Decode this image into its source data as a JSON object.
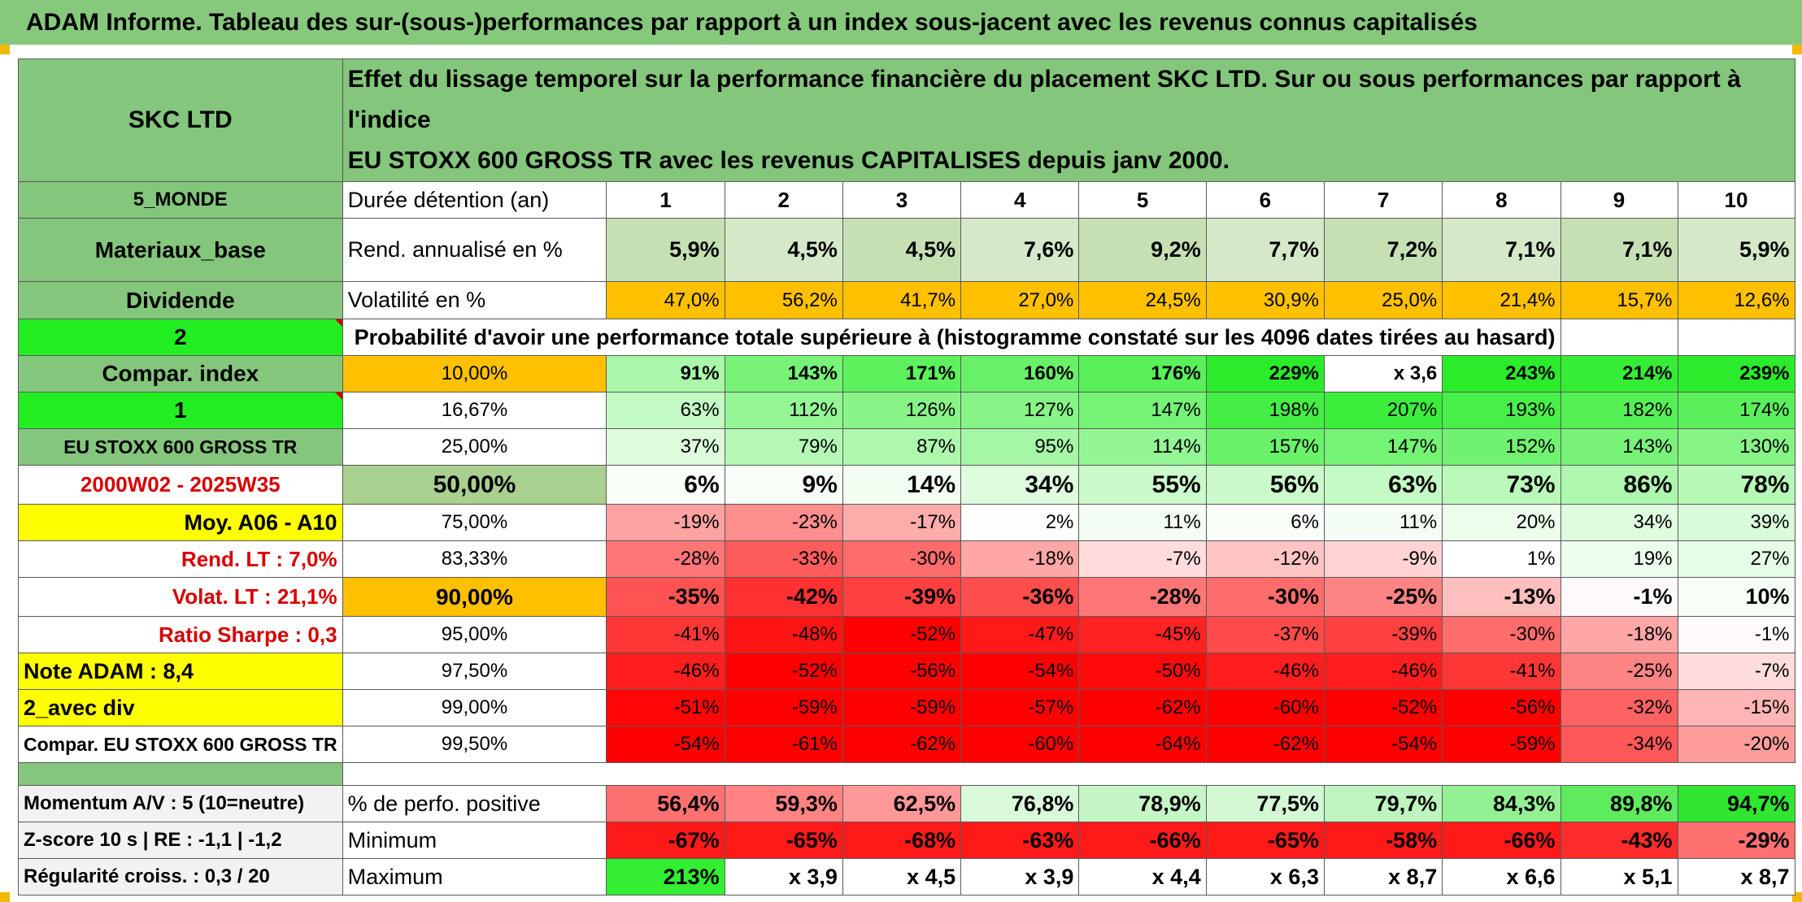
{
  "title": "ADAM Informe. Tableau des sur-(sous-)performances par rapport à un index sous-jacent avec les revenus connus capitalisés",
  "header": {
    "fund": "SKC LTD",
    "description_line1": "Effet du lissage temporel sur la performance financière du placement SKC LTD. Sur ou sous performances par rapport à l'indice",
    "description_line2": "EU STOXX 600 GROSS TR avec les revenus CAPITALISES depuis janv 2000."
  },
  "left_labels": {
    "region": "5_MONDE",
    "sector": "Materiaux_base",
    "dividend": "Dividende",
    "choice_2": "2",
    "compar_index": "Compar. index",
    "choice_1": "1",
    "index_name": "EU STOXX 600 GROSS TR",
    "period": "2000W02 - 2025W35",
    "moy": "Moy. A06 - A10",
    "rend_lt": "Rend. LT :   7,0%",
    "volat_lt": "Volat. LT :   21,1%",
    "sharpe": "Ratio Sharpe :   0,3",
    "note": "Note ADAM : 8,4",
    "avec_div": "2_avec div",
    "compar_full": "Compar. EU STOXX 600 GROSS TR",
    "momentum": "Momentum A/V : 5 (10=neutre)",
    "zscore": "Z-score 10 s | RE : -1,1 | -1,2",
    "regularite": "Régularité croiss. : 0,3 / 20"
  },
  "row_labels": {
    "duree": "Durée détention (an)",
    "rend": "Rend. annualisé en %",
    "volat": "Volatilité en %",
    "proba": "Probabilité d'avoir une performance totale supérieure à (histogramme constaté sur les 4096 dates tirées au hasard)",
    "pct_pos": "% de perfo. positive",
    "minimum": "Minimum",
    "maximum": "Maximum"
  },
  "years": [
    "1",
    "2",
    "3",
    "4",
    "5",
    "6",
    "7",
    "8",
    "9",
    "10"
  ],
  "rend_values": [
    "5,9%",
    "4,5%",
    "4,5%",
    "7,6%",
    "9,2%",
    "7,7%",
    "7,2%",
    "7,1%",
    "7,1%",
    "5,9%"
  ],
  "volat_values": [
    "47,0%",
    "56,2%",
    "41,7%",
    "27,0%",
    "24,5%",
    "30,9%",
    "25,0%",
    "21,4%",
    "15,7%",
    "12,6%"
  ],
  "proba_rows": [
    {
      "threshold": "10,00%",
      "values": [
        "91%",
        "143%",
        "171%",
        "160%",
        "176%",
        "229%",
        "x 3,6",
        "243%",
        "214%",
        "239%"
      ]
    },
    {
      "threshold": "16,67%",
      "values": [
        "63%",
        "112%",
        "126%",
        "127%",
        "147%",
        "198%",
        "207%",
        "193%",
        "182%",
        "174%"
      ]
    },
    {
      "threshold": "25,00%",
      "values": [
        "37%",
        "79%",
        "87%",
        "95%",
        "114%",
        "157%",
        "147%",
        "152%",
        "143%",
        "130%"
      ]
    },
    {
      "threshold": "50,00%",
      "values": [
        "6%",
        "9%",
        "14%",
        "34%",
        "55%",
        "56%",
        "63%",
        "73%",
        "86%",
        "78%"
      ]
    },
    {
      "threshold": "75,00%",
      "values": [
        "-19%",
        "-23%",
        "-17%",
        "2%",
        "11%",
        "6%",
        "11%",
        "20%",
        "34%",
        "39%"
      ]
    },
    {
      "threshold": "83,33%",
      "values": [
        "-28%",
        "-33%",
        "-30%",
        "-18%",
        "-7%",
        "-12%",
        "-9%",
        "1%",
        "19%",
        "27%"
      ]
    },
    {
      "threshold": "90,00%",
      "values": [
        "-35%",
        "-42%",
        "-39%",
        "-36%",
        "-28%",
        "-30%",
        "-25%",
        "-13%",
        "-1%",
        "10%"
      ]
    },
    {
      "threshold": "95,00%",
      "values": [
        "-41%",
        "-48%",
        "-52%",
        "-47%",
        "-45%",
        "-37%",
        "-39%",
        "-30%",
        "-18%",
        "-1%"
      ]
    },
    {
      "threshold": "97,50%",
      "values": [
        "-46%",
        "-52%",
        "-56%",
        "-54%",
        "-50%",
        "-46%",
        "-46%",
        "-41%",
        "-25%",
        "-7%"
      ]
    },
    {
      "threshold": "99,00%",
      "values": [
        "-51%",
        "-59%",
        "-59%",
        "-57%",
        "-62%",
        "-60%",
        "-52%",
        "-56%",
        "-32%",
        "-15%"
      ]
    },
    {
      "threshold": "99,50%",
      "values": [
        "-54%",
        "-61%",
        "-62%",
        "-60%",
        "-64%",
        "-62%",
        "-54%",
        "-59%",
        "-34%",
        "-20%"
      ]
    }
  ],
  "pct_pos_values": [
    "56,4%",
    "59,3%",
    "62,5%",
    "76,8%",
    "78,9%",
    "77,5%",
    "79,7%",
    "84,3%",
    "89,8%",
    "94,7%"
  ],
  "min_values": [
    "-67%",
    "-65%",
    "-68%",
    "-63%",
    "-66%",
    "-65%",
    "-58%",
    "-66%",
    "-43%",
    "-29%"
  ],
  "max_values": [
    "213%",
    "x 3,9",
    "x 4,5",
    "x 3,9",
    "x 4,4",
    "x 6,3",
    "x 8,7",
    "x 6,6",
    "x 5,1",
    "x 8,7"
  ],
  "colors": {
    "title_bg": "#86c97c",
    "label_green": "#84c67c",
    "bright_green": "#22ee22",
    "yellow": "#ffff00",
    "orange": "#ffc000",
    "pale_green": "#c6e0b4",
    "red_text": "#d80000"
  }
}
